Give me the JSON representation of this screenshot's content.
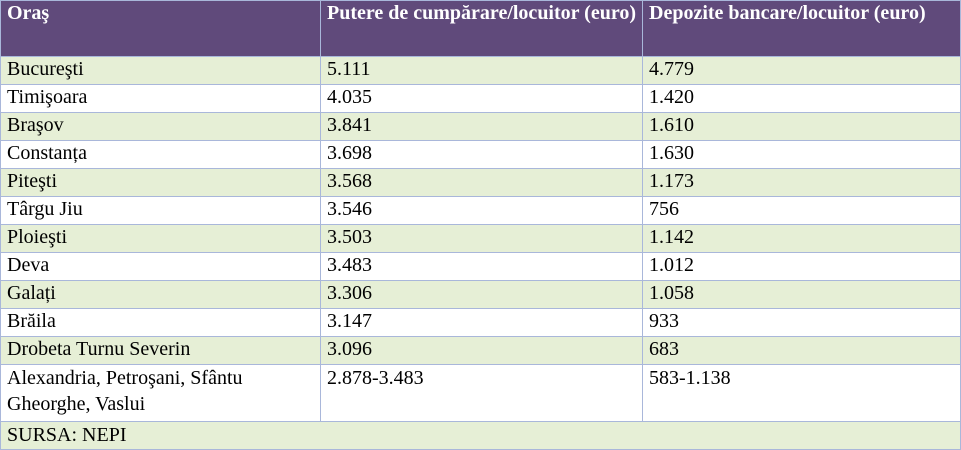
{
  "table": {
    "headers": [
      "Oraş",
      "Putere de cumpărare/locuitor (euro)",
      "Depozite bancare/locuitor (euro)"
    ],
    "rows": [
      [
        "Bucureşti",
        "5.111",
        "4.779"
      ],
      [
        "Timişoara",
        "4.035",
        "1.420"
      ],
      [
        "Braşov",
        "3.841",
        "1.610"
      ],
      [
        "Constanța",
        "3.698",
        "1.630"
      ],
      [
        "Piteşti",
        "3.568",
        "1.173"
      ],
      [
        "Târgu Jiu",
        "3.546",
        "756"
      ],
      [
        "Ploieşti",
        "3.503",
        "1.142"
      ],
      [
        "Deva",
        "3.483",
        "1.012"
      ],
      [
        "Galați",
        "3.306",
        "1.058"
      ],
      [
        "Brăila",
        "3.147",
        "933"
      ],
      [
        "Drobeta Turnu Severin",
        "3.096",
        "683"
      ],
      [
        "Alexandria, Petroşani, Sfântu Gheorghe, Vaslui",
        "2.878-3.483",
        "583-1.138"
      ]
    ],
    "source": "SURSA: NEPI"
  },
  "colors": {
    "header_bg": "#604a7b",
    "header_text": "#ffffff",
    "stripe_bg": "#e6efd6",
    "border": "#a9b7da"
  }
}
